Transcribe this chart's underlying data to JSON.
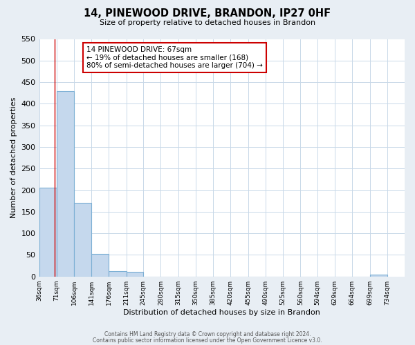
{
  "title": "14, PINEWOOD DRIVE, BRANDON, IP27 0HF",
  "subtitle": "Size of property relative to detached houses in Brandon",
  "xlabel": "Distribution of detached houses by size in Brandon",
  "ylabel": "Number of detached properties",
  "bar_edges": [
    36,
    71,
    106,
    141,
    176,
    211,
    245,
    280,
    315,
    350,
    385,
    420,
    455,
    490,
    525,
    560,
    594,
    629,
    664,
    699,
    734
  ],
  "bar_heights": [
    205,
    430,
    170,
    53,
    13,
    10,
    0,
    0,
    0,
    0,
    0,
    0,
    0,
    0,
    0,
    0,
    0,
    0,
    0,
    5
  ],
  "bar_color": "#c5d8ed",
  "bar_edge_color": "#7bafd4",
  "property_line_x": 67,
  "property_line_color": "#cc0000",
  "annotation_line1": "14 PINEWOOD DRIVE: 67sqm",
  "annotation_line2": "← 19% of detached houses are smaller (168)",
  "annotation_line3": "80% of semi-detached houses are larger (704) →",
  "annotation_box_color": "#cc0000",
  "ylim": [
    0,
    550
  ],
  "yticks": [
    0,
    50,
    100,
    150,
    200,
    250,
    300,
    350,
    400,
    450,
    500,
    550
  ],
  "xtick_labels": [
    "36sqm",
    "71sqm",
    "106sqm",
    "141sqm",
    "176sqm",
    "211sqm",
    "245sqm",
    "280sqm",
    "315sqm",
    "350sqm",
    "385sqm",
    "420sqm",
    "455sqm",
    "490sqm",
    "525sqm",
    "560sqm",
    "594sqm",
    "629sqm",
    "664sqm",
    "699sqm",
    "734sqm"
  ],
  "footer_line1": "Contains HM Land Registry data © Crown copyright and database right 2024.",
  "footer_line2": "Contains public sector information licensed under the Open Government Licence v3.0.",
  "background_color": "#e8eef4",
  "plot_bg_color": "#ffffff",
  "title_fontsize": 10.5,
  "subtitle_fontsize": 8,
  "footer_fontsize": 5.5
}
